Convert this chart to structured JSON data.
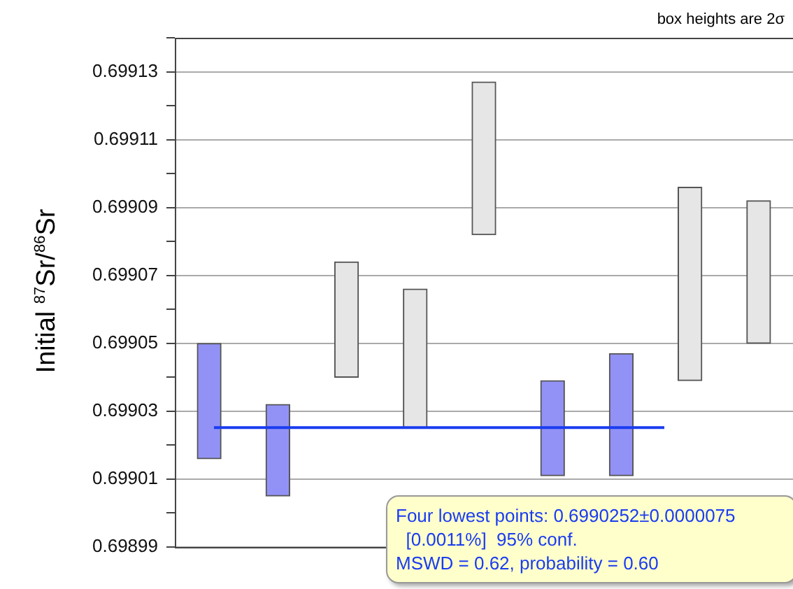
{
  "chart_data": {
    "type": "bar",
    "ylabel": "Initial $^{87}$Sr/$^{86}$Sr",
    "categories": [
      null,
      null,
      null,
      null,
      null,
      null,
      null,
      null,
      null
    ],
    "base": [
      0.699016,
      0.699005,
      0.69904,
      0.699025,
      0.699082,
      0.699011,
      0.699011,
      0.699039,
      0.69905
    ],
    "values": [
      3.4e-05,
      2.7e-05,
      3.4e-05,
      4.1e-05,
      4.5e-05,
      2.8e-05,
      3.6e-05,
      5.7e-05,
      4.2e-05
    ],
    "colors": [
      "#9292f6",
      "#9292f6",
      "#e6e6e6",
      "#e6e6e6",
      "#e6e6e6",
      "#9292f6",
      "#9292f6",
      "#e6e6e6",
      "#e6e6e6"
    ],
    "ylim": [
      0.69899,
      0.69914
    ],
    "yticks": [
      0.69899,
      {
        "value": 0.699,
        "label": null
      },
      0.69901,
      {
        "value": 0.69902,
        "label": null
      },
      0.69903,
      {
        "value": 0.69904,
        "label": null
      },
      0.69905,
      {
        "value": 0.69906,
        "label": null
      },
      0.69907,
      {
        "value": 0.69908,
        "label": null
      },
      0.69909,
      {
        "value": 0.6991,
        "label": null
      },
      0.69911,
      {
        "value": 0.69912,
        "label": null
      },
      0.69913,
      {
        "value": 0.69914,
        "label": null
      }
    ],
    "grid": "y",
    "tick_labels": "y",
    "legend": false,
    "ref_lines": [
      {
        "axis": "y",
        "value": 0.6990252,
        "color": "#1a3cf0"
      }
    ],
    "annotations": [
      "box heights are 2σ",
      "Four lowest points: 0.6990252±0.0000075\n  [0.0011%]  95% conf.\nMSWD = 0.62, probability = 0.60"
    ]
  }
}
